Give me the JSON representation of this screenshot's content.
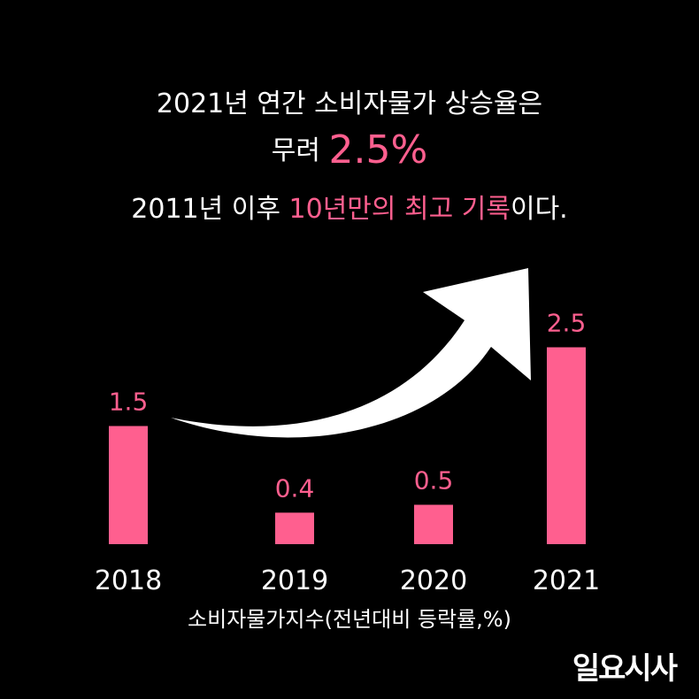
{
  "headline": {
    "line1": "2021년 연간 소비자물가 상승율은",
    "line2_prefix": "무려 ",
    "line2_highlight": "2.5%",
    "line3_prefix": "2011년 이후 ",
    "line3_highlight": "10년만의 최고 기록",
    "line3_suffix": "이다."
  },
  "chart_data": {
    "type": "bar",
    "categories": [
      "2018",
      "2019",
      "2020",
      "2021"
    ],
    "values": [
      1.5,
      0.4,
      0.5,
      2.5
    ],
    "value_labels": [
      "1.5",
      "0.4",
      "0.5",
      "2.5"
    ],
    "xlabel": "소비자물가지수(전년대비 등락률,%)",
    "grid": false,
    "bar_color": "#ff5f8f",
    "annotation": "upward-curved-arrow"
  },
  "colors": {
    "background": "#000000",
    "accent": "#ff5f8f",
    "text": "#ffffff"
  },
  "logo": "일요시사"
}
